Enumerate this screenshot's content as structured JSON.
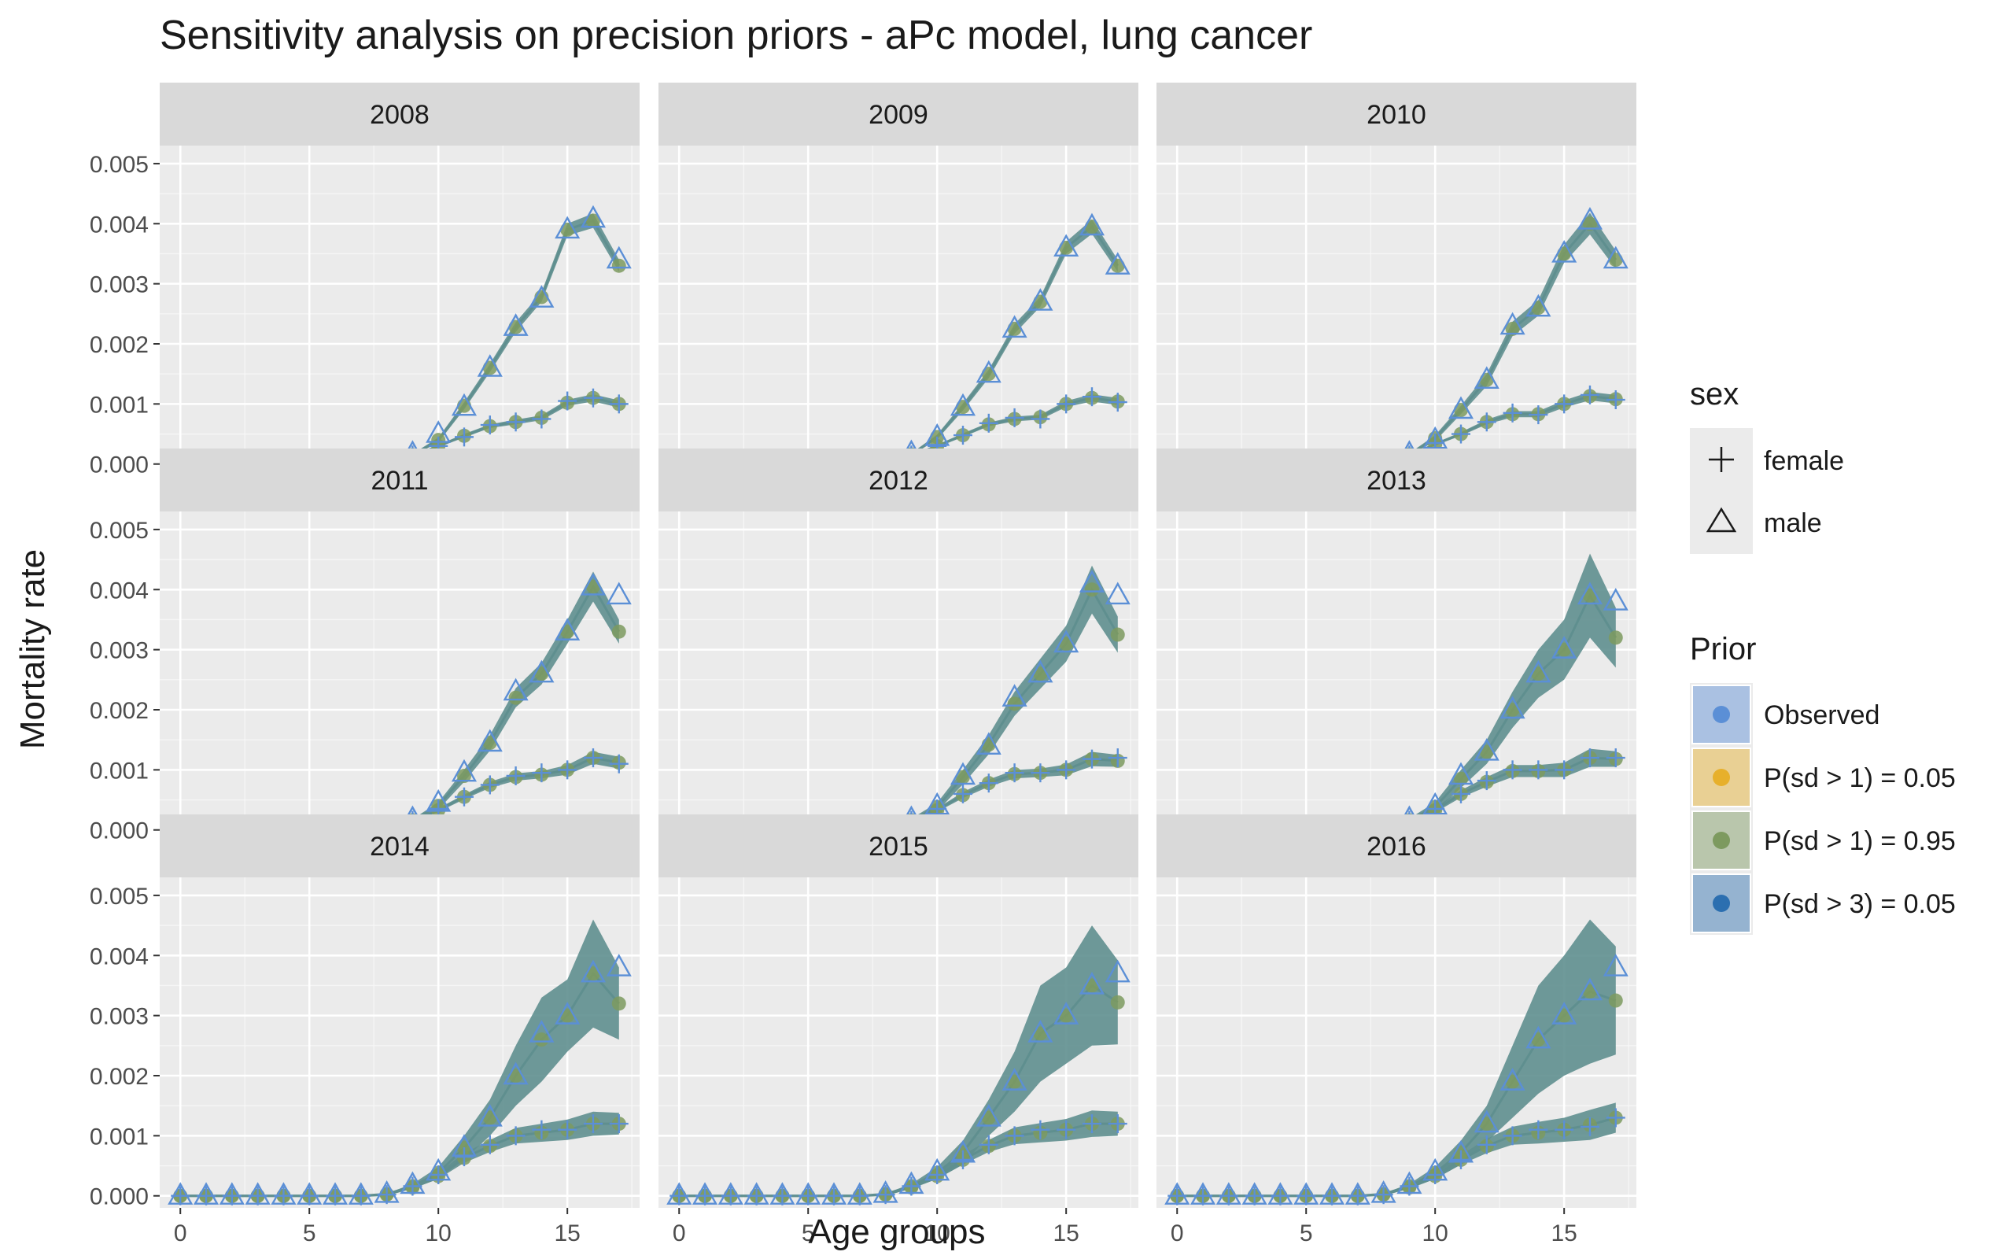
{
  "chart_data": {
    "type": "line",
    "title": "Sensitivity analysis on precision priors - aPc model, lung cancer",
    "xlabel": "Age groups",
    "ylabel": "Mortality rate",
    "xlim": [
      -0.8,
      17.8
    ],
    "ylim": [
      -0.0002,
      0.0053
    ],
    "x_ticks": [
      0,
      5,
      10,
      15
    ],
    "x_tick_labels": [
      "0",
      "5",
      "10",
      "15"
    ],
    "y_ticks": [
      0,
      0.001,
      0.002,
      0.003,
      0.004,
      0.005
    ],
    "y_tick_labels": [
      "0.000",
      "0.001",
      "0.002",
      "0.003",
      "0.004",
      "0.005"
    ],
    "grid": true,
    "legend_placement": "right",
    "legends": {
      "sex": {
        "title": "sex",
        "items": [
          {
            "label": "female",
            "shape": "plus"
          },
          {
            "label": "male",
            "shape": "triangle"
          }
        ]
      },
      "prior": {
        "title": "Prior",
        "items": [
          {
            "label": "Observed",
            "color": "#5b8fd6"
          },
          {
            "label": "P(sd > 1) = 0.05",
            "color": "#e7b02b"
          },
          {
            "label": "P(sd > 1) = 0.95",
            "color": "#7d9a5f"
          },
          {
            "label": "P(sd > 3) = 0.05",
            "color": "#2c6fb0"
          }
        ]
      }
    },
    "colors": {
      "ribbon": "#5f8f8f",
      "line": "#5f8f8f",
      "observed": "#5b8fd6",
      "fitted_point": "#7d9a5f"
    },
    "x": [
      0,
      1,
      2,
      3,
      4,
      5,
      6,
      7,
      8,
      9,
      10,
      11,
      12,
      13,
      14,
      15,
      16,
      17
    ],
    "panels": [
      {
        "label": "2008",
        "male_observed": [
          0,
          0,
          0,
          0,
          0,
          0,
          0,
          0,
          3e-05,
          0.00017,
          0.0005,
          0.00095,
          0.0016,
          0.00228,
          0.00275,
          0.0039,
          0.00408,
          0.0034
        ],
        "female_observed": [
          0,
          0,
          0,
          0,
          0,
          0,
          0,
          0,
          2e-05,
          0.00015,
          0.0003,
          0.00045,
          0.00065,
          0.0007,
          0.00075,
          0.00105,
          0.0011,
          0.001
        ],
        "male_fitted": [
          0,
          0,
          0,
          0,
          0,
          0,
          0,
          0,
          3e-05,
          0.00015,
          0.0004,
          0.00097,
          0.0016,
          0.00228,
          0.00278,
          0.0039,
          0.00405,
          0.0033
        ],
        "female_fitted": [
          0,
          0,
          0,
          0,
          0,
          0,
          0,
          0,
          2e-05,
          0.00013,
          0.0003,
          0.00047,
          0.00063,
          0.0007,
          0.00077,
          0.00102,
          0.0011,
          0.001
        ],
        "male_band": [
          0,
          0,
          0,
          0,
          0,
          0,
          0,
          0,
          1e-05,
          2e-05,
          4e-05,
          6e-05,
          7e-05,
          8e-05,
          8e-05,
          0.0001,
          0.00012,
          0.0001
        ],
        "female_band": [
          0,
          0,
          0,
          0,
          0,
          0,
          0,
          0,
          1e-05,
          1e-05,
          2e-05,
          3e-05,
          3e-05,
          4e-05,
          4e-05,
          5e-05,
          6e-05,
          6e-05
        ]
      },
      {
        "label": "2009",
        "male_observed": [
          0,
          0,
          0,
          0,
          0,
          0,
          0,
          0,
          3e-05,
          0.00018,
          0.00045,
          0.00095,
          0.0015,
          0.00225,
          0.0027,
          0.0036,
          0.00395,
          0.0033
        ],
        "female_observed": [
          0,
          0,
          0,
          0,
          0,
          0,
          0,
          0,
          2e-05,
          0.00015,
          0.0003,
          0.00048,
          0.00068,
          0.00077,
          0.00075,
          0.001,
          0.00112,
          0.00103
        ],
        "male_fitted": [
          0,
          0,
          0,
          0,
          0,
          0,
          0,
          0,
          3e-05,
          0.00016,
          0.00045,
          0.00095,
          0.0015,
          0.00225,
          0.0027,
          0.0036,
          0.00395,
          0.0033
        ],
        "female_fitted": [
          0,
          0,
          0,
          0,
          0,
          0,
          0,
          0,
          2e-05,
          0.00014,
          0.0003,
          0.00048,
          0.00066,
          0.00075,
          0.00078,
          0.001,
          0.0011,
          0.00104
        ],
        "male_band": [
          0,
          0,
          0,
          0,
          0,
          0,
          0,
          0,
          1e-05,
          2e-05,
          4e-05,
          6e-05,
          7e-05,
          8e-05,
          8e-05,
          0.0001,
          0.00012,
          0.0001
        ],
        "female_band": [
          0,
          0,
          0,
          0,
          0,
          0,
          0,
          0,
          1e-05,
          1e-05,
          2e-05,
          3e-05,
          3e-05,
          4e-05,
          4e-05,
          5e-05,
          6e-05,
          6e-05
        ]
      },
      {
        "label": "2010",
        "male_observed": [
          0,
          0,
          0,
          0,
          0,
          0,
          0,
          0,
          3e-05,
          0.00017,
          0.0004,
          0.0009,
          0.0014,
          0.0023,
          0.0026,
          0.0035,
          0.00405,
          0.0034
        ],
        "female_observed": [
          0,
          0,
          0,
          0,
          0,
          0,
          0,
          0,
          2e-05,
          0.00015,
          0.00035,
          0.0005,
          0.0007,
          0.00085,
          0.00082,
          0.001,
          0.00115,
          0.00107
        ],
        "male_fitted": [
          0,
          0,
          0,
          0,
          0,
          0,
          0,
          0,
          3e-05,
          0.00016,
          0.00043,
          0.0009,
          0.0014,
          0.00225,
          0.0026,
          0.0035,
          0.004,
          0.0034
        ],
        "female_fitted": [
          0,
          0,
          0,
          0,
          0,
          0,
          0,
          0,
          2e-05,
          0.00014,
          0.00033,
          0.0005,
          0.0007,
          0.00083,
          0.00083,
          0.001,
          0.00113,
          0.00108
        ],
        "male_band": [
          0,
          0,
          0,
          0,
          0,
          0,
          0,
          0,
          1e-05,
          2e-05,
          5e-05,
          7e-05,
          0.0001,
          0.00012,
          0.00013,
          0.00015,
          0.00018,
          0.00015
        ],
        "female_band": [
          0,
          0,
          0,
          0,
          0,
          0,
          0,
          0,
          1e-05,
          1e-05,
          2e-05,
          3e-05,
          4e-05,
          5e-05,
          5e-05,
          6e-05,
          7e-05,
          7e-05
        ]
      },
      {
        "label": "2011",
        "male_observed": [
          0,
          0,
          0,
          0,
          0,
          0,
          0,
          0,
          3e-05,
          0.00018,
          0.00045,
          0.00095,
          0.00145,
          0.0023,
          0.0026,
          0.0033,
          0.00405,
          0.0039
        ],
        "female_observed": [
          0,
          0,
          0,
          0,
          0,
          0,
          0,
          0,
          2e-05,
          0.00016,
          0.00035,
          0.00055,
          0.00075,
          0.0009,
          0.00095,
          0.001,
          0.0012,
          0.0011
        ],
        "male_fitted": [
          0,
          0,
          0,
          0,
          0,
          0,
          0,
          0,
          3e-05,
          0.00016,
          0.0004,
          0.0009,
          0.00145,
          0.0022,
          0.0026,
          0.0033,
          0.00405,
          0.0033
        ],
        "female_fitted": [
          0,
          0,
          0,
          0,
          0,
          0,
          0,
          0,
          2e-05,
          0.00014,
          0.00033,
          0.00055,
          0.00075,
          0.00088,
          0.00092,
          0.001,
          0.0012,
          0.00112
        ],
        "male_band": [
          0,
          0,
          0,
          0,
          0,
          0,
          0,
          0,
          1e-05,
          2e-05,
          6e-05,
          0.0001,
          0.00013,
          0.00016,
          0.00018,
          0.0002,
          0.00025,
          0.0002
        ],
        "female_band": [
          0,
          0,
          0,
          0,
          0,
          0,
          0,
          0,
          1e-05,
          1e-05,
          3e-05,
          4e-05,
          5e-05,
          6e-05,
          6e-05,
          8e-05,
          0.0001,
          0.0001
        ]
      },
      {
        "label": "2012",
        "male_observed": [
          0,
          0,
          0,
          0,
          0,
          0,
          0,
          0,
          3e-05,
          0.00018,
          0.0004,
          0.0009,
          0.0014,
          0.0022,
          0.0026,
          0.0031,
          0.0041,
          0.0039
        ],
        "female_observed": [
          0,
          0,
          0,
          0,
          0,
          0,
          0,
          0,
          2e-05,
          0.00016,
          0.00035,
          0.0006,
          0.00078,
          0.00095,
          0.00095,
          0.001,
          0.00118,
          0.0012
        ],
        "male_fitted": [
          0,
          0,
          0,
          0,
          0,
          0,
          0,
          0,
          3e-05,
          0.00016,
          0.00038,
          0.00088,
          0.00142,
          0.0021,
          0.0026,
          0.0031,
          0.004,
          0.00325
        ],
        "female_fitted": [
          0,
          0,
          0,
          0,
          0,
          0,
          0,
          0,
          2e-05,
          0.00014,
          0.00033,
          0.00058,
          0.00078,
          0.00093,
          0.00095,
          0.001,
          0.00118,
          0.00115
        ],
        "male_band": [
          0,
          0,
          0,
          0,
          0,
          0,
          0,
          0,
          1e-05,
          3e-05,
          7e-05,
          0.00012,
          0.00016,
          0.0002,
          0.00025,
          0.0003,
          0.0004,
          0.0003
        ],
        "female_band": [
          0,
          0,
          0,
          0,
          0,
          0,
          0,
          0,
          1e-05,
          1e-05,
          3e-05,
          5e-05,
          6e-05,
          7e-05,
          7e-05,
          9e-05,
          0.00012,
          0.0001
        ]
      },
      {
        "label": "2013",
        "male_observed": [
          0,
          0,
          0,
          0,
          0,
          0,
          0,
          0,
          3e-05,
          0.00018,
          0.0004,
          0.0009,
          0.0013,
          0.002,
          0.0026,
          0.003,
          0.0039,
          0.0038
        ],
        "female_observed": [
          0,
          0,
          0,
          0,
          0,
          0,
          0,
          0,
          2e-05,
          0.00016,
          0.00035,
          0.0006,
          0.00082,
          0.001,
          0.001,
          0.001,
          0.0012,
          0.0012
        ],
        "male_fitted": [
          0,
          0,
          0,
          0,
          0,
          0,
          0,
          0,
          3e-05,
          0.00016,
          0.00038,
          0.00085,
          0.0013,
          0.002,
          0.0026,
          0.003,
          0.0039,
          0.0032
        ],
        "female_fitted": [
          0,
          0,
          0,
          0,
          0,
          0,
          0,
          0,
          2e-05,
          0.00014,
          0.00033,
          0.0006,
          0.0008,
          0.00098,
          0.00098,
          0.001,
          0.0012,
          0.00118
        ],
        "male_band": [
          0,
          0,
          0,
          0,
          0,
          0,
          0,
          0,
          1e-05,
          3e-05,
          8e-05,
          0.00015,
          0.0002,
          0.0003,
          0.0004,
          0.0005,
          0.0007,
          0.0005
        ],
        "female_band": [
          0,
          0,
          0,
          0,
          0,
          0,
          0,
          0,
          1e-05,
          2e-05,
          4e-05,
          6e-05,
          8e-05,
          0.0001,
          0.0001,
          0.00012,
          0.00015,
          0.00013
        ]
      },
      {
        "label": "2014",
        "male_observed": [
          0,
          0,
          0,
          0,
          0,
          0,
          0,
          0,
          3e-05,
          0.00018,
          0.0004,
          0.0008,
          0.0013,
          0.002,
          0.0027,
          0.003,
          0.0037,
          0.0038
        ],
        "female_observed": [
          0,
          0,
          0,
          0,
          0,
          0,
          0,
          0,
          2e-05,
          0.00016,
          0.00035,
          0.00065,
          0.00085,
          0.001,
          0.0011,
          0.0011,
          0.0012,
          0.0012
        ],
        "male_fitted": [
          0,
          0,
          0,
          0,
          0,
          0,
          0,
          0,
          3e-05,
          0.00016,
          0.00038,
          0.0008,
          0.0013,
          0.002,
          0.0026,
          0.003,
          0.0037,
          0.0032
        ],
        "female_fitted": [
          0,
          0,
          0,
          0,
          0,
          0,
          0,
          0,
          2e-05,
          0.00014,
          0.00033,
          0.00063,
          0.00083,
          0.001,
          0.00105,
          0.0011,
          0.0012,
          0.0012
        ],
        "male_band": [
          0,
          0,
          0,
          0,
          0,
          0,
          0,
          0,
          1e-05,
          4e-05,
          0.0001,
          0.0002,
          0.0003,
          0.0005,
          0.0007,
          0.0006,
          0.0009,
          0.0006
        ],
        "female_band": [
          0,
          0,
          0,
          0,
          0,
          0,
          0,
          0,
          1e-05,
          2e-05,
          5e-05,
          8e-05,
          0.0001,
          0.00013,
          0.00015,
          0.00017,
          0.0002,
          0.00018
        ]
      },
      {
        "label": "2015",
        "male_observed": [
          0,
          0,
          0,
          0,
          0,
          0,
          0,
          0,
          3e-05,
          0.00018,
          0.0004,
          0.0007,
          0.0013,
          0.0019,
          0.0027,
          0.003,
          0.0035,
          0.0037
        ],
        "female_observed": [
          0,
          0,
          0,
          0,
          0,
          0,
          0,
          0,
          2e-05,
          0.00016,
          0.00035,
          0.0006,
          0.00085,
          0.001,
          0.0011,
          0.0011,
          0.0012,
          0.0012
        ],
        "male_fitted": [
          0,
          0,
          0,
          0,
          0,
          0,
          0,
          0,
          3e-05,
          0.00016,
          0.00038,
          0.00072,
          0.0013,
          0.0019,
          0.0027,
          0.003,
          0.0035,
          0.00322
        ],
        "female_fitted": [
          0,
          0,
          0,
          0,
          0,
          0,
          0,
          0,
          2e-05,
          0.00014,
          0.00033,
          0.0006,
          0.00083,
          0.001,
          0.00105,
          0.0011,
          0.0012,
          0.0012
        ],
        "male_band": [
          0,
          0,
          0,
          0,
          0,
          0,
          0,
          0,
          1e-05,
          4e-05,
          0.0001,
          0.0002,
          0.0003,
          0.0005,
          0.0008,
          0.0008,
          0.001,
          0.0007
        ],
        "female_band": [
          0,
          0,
          0,
          0,
          0,
          0,
          0,
          0,
          1e-05,
          2e-05,
          5e-05,
          8e-05,
          0.0001,
          0.00014,
          0.00016,
          0.00018,
          0.00022,
          0.0002
        ]
      },
      {
        "label": "2016",
        "male_observed": [
          0,
          0,
          0,
          0,
          0,
          0,
          0,
          0,
          3e-05,
          0.00018,
          0.0004,
          0.0007,
          0.0012,
          0.0019,
          0.0026,
          0.003,
          0.0034,
          0.0038
        ],
        "female_observed": [
          0,
          0,
          0,
          0,
          0,
          0,
          0,
          0,
          2e-05,
          0.00016,
          0.00035,
          0.0006,
          0.00085,
          0.001,
          0.0011,
          0.0011,
          0.00115,
          0.0013
        ],
        "male_fitted": [
          0,
          0,
          0,
          0,
          0,
          0,
          0,
          0,
          3e-05,
          0.00016,
          0.00038,
          0.00072,
          0.0012,
          0.0019,
          0.0026,
          0.003,
          0.0034,
          0.00325
        ],
        "female_fitted": [
          0,
          0,
          0,
          0,
          0,
          0,
          0,
          0,
          2e-05,
          0.00014,
          0.00033,
          0.0006,
          0.00083,
          0.001,
          0.00105,
          0.0011,
          0.00118,
          0.0013
        ],
        "male_band": [
          0,
          0,
          0,
          0,
          0,
          0,
          0,
          0,
          1e-05,
          4e-05,
          0.0001,
          0.0002,
          0.0003,
          0.0006,
          0.0009,
          0.001,
          0.0012,
          0.0009
        ],
        "female_band": [
          0,
          0,
          0,
          0,
          0,
          0,
          0,
          0,
          1e-05,
          2e-05,
          5e-05,
          8e-05,
          0.00012,
          0.00015,
          0.00018,
          0.0002,
          0.00025,
          0.00025
        ]
      }
    ]
  }
}
